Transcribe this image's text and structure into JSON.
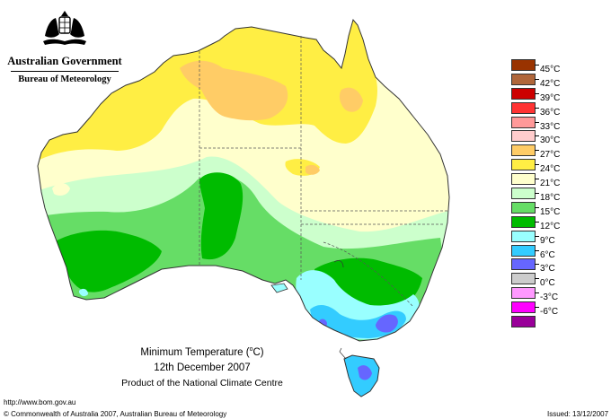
{
  "agency": {
    "government": "Australian Government",
    "bureau": "Bureau of Meteorology"
  },
  "map": {
    "title_prefix": "Minimum Temperature (",
    "title_degree": "o",
    "title_suffix": "C)",
    "date": "12th December 2007",
    "product": "Product of the National Climate Centre"
  },
  "legend": {
    "items": [
      {
        "label": "45°C",
        "color": "#993300"
      },
      {
        "label": "42°C",
        "color": "#b0663a"
      },
      {
        "label": "39°C",
        "color": "#cc0000"
      },
      {
        "label": "36°C",
        "color": "#ff3333"
      },
      {
        "label": "33°C",
        "color": "#ff9999"
      },
      {
        "label": "30°C",
        "color": "#ffcccc"
      },
      {
        "label": "27°C",
        "color": "#ffcc66"
      },
      {
        "label": "24°C",
        "color": "#ffee44"
      },
      {
        "label": "21°C",
        "color": "#ffffcc"
      },
      {
        "label": "18°C",
        "color": "#ccffcc"
      },
      {
        "label": "15°C",
        "color": "#66dd66"
      },
      {
        "label": "12°C",
        "color": "#00bb00"
      },
      {
        "label": "9°C",
        "color": "#99ffff"
      },
      {
        "label": "6°C",
        "color": "#33ccff"
      },
      {
        "label": "3°C",
        "color": "#6666ff"
      },
      {
        "label": "0°C",
        "color": "#cccccc"
      },
      {
        "label": "-3°C",
        "color": "#ff99ff"
      },
      {
        "label": "-6°C",
        "color": "#ff00ff"
      },
      {
        "label": "",
        "color": "#990099"
      }
    ]
  },
  "footer": {
    "url": "http://www.bom.gov.au",
    "copyright": "© Commonwealth of Australia 2007, Australian Bureau of Meteorology",
    "issued": "Issued: 13/12/2007"
  },
  "colors": {
    "c27": "#ffcc66",
    "c24": "#ffee44",
    "c21": "#ffffcc",
    "c18": "#ccffcc",
    "c15": "#66dd66",
    "c12": "#00bb00",
    "c9": "#99ffff",
    "c6": "#33ccff",
    "c3": "#6666ff"
  }
}
